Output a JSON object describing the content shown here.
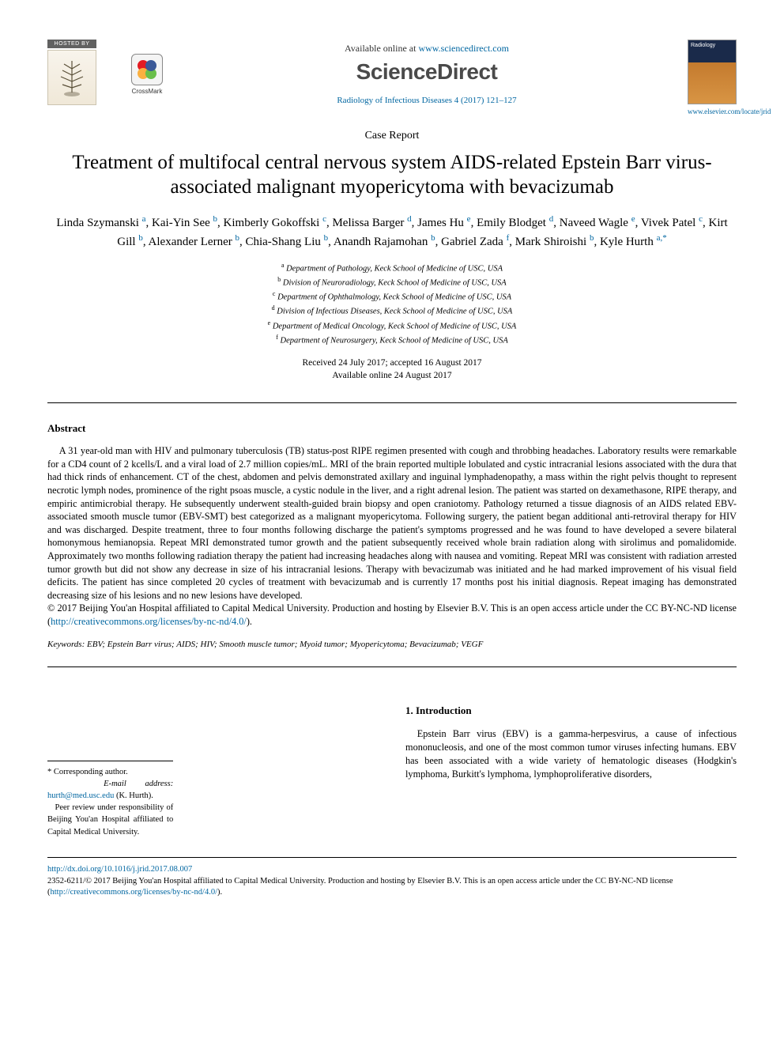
{
  "header": {
    "hosted_by_label": "HOSTED BY",
    "crossmark_label": "CrossMark",
    "available_prefix": "Available online at ",
    "available_url": "www.sciencedirect.com",
    "sd_logo_text": "ScienceDirect",
    "journal_ref": "Radiology of Infectious Diseases 4 (2017) 121–127",
    "cover_title": "Radiology",
    "cover_link": "www.elsevier.com/locate/jrid"
  },
  "article": {
    "type_label": "Case Report",
    "title": "Treatment of multifocal central nervous system AIDS-related Epstein Barr virus-associated malignant myopericytoma with bevacizumab",
    "authors": [
      {
        "name": "Linda Szymanski",
        "aff": "a"
      },
      {
        "name": "Kai-Yin See",
        "aff": "b"
      },
      {
        "name": "Kimberly Gokoffski",
        "aff": "c"
      },
      {
        "name": "Melissa Barger",
        "aff": "d"
      },
      {
        "name": "James Hu",
        "aff": "e"
      },
      {
        "name": "Emily Blodget",
        "aff": "d"
      },
      {
        "name": "Naveed Wagle",
        "aff": "e"
      },
      {
        "name": "Vivek Patel",
        "aff": "c"
      },
      {
        "name": "Kirt Gill",
        "aff": "b"
      },
      {
        "name": "Alexander Lerner",
        "aff": "b"
      },
      {
        "name": "Chia-Shang Liu",
        "aff": "b"
      },
      {
        "name": "Anandh Rajamohan",
        "aff": "b"
      },
      {
        "name": "Gabriel Zada",
        "aff": "f"
      },
      {
        "name": "Mark Shiroishi",
        "aff": "b"
      },
      {
        "name": "Kyle Hurth",
        "aff": "a",
        "corr": true
      }
    ],
    "affiliations": [
      {
        "label": "a",
        "text": "Department of Pathology, Keck School of Medicine of USC, USA"
      },
      {
        "label": "b",
        "text": "Division of Neuroradiology, Keck School of Medicine of USC, USA"
      },
      {
        "label": "c",
        "text": "Department of Ophthalmology, Keck School of Medicine of USC, USA"
      },
      {
        "label": "d",
        "text": "Division of Infectious Diseases, Keck School of Medicine of USC, USA"
      },
      {
        "label": "e",
        "text": "Department of Medical Oncology, Keck School of Medicine of USC, USA"
      },
      {
        "label": "f",
        "text": "Department of Neurosurgery, Keck School of Medicine of USC, USA"
      }
    ],
    "dates": {
      "received_accepted": "Received 24 July 2017; accepted 16 August 2017",
      "online": "Available online 24 August 2017"
    }
  },
  "abstract": {
    "heading": "Abstract",
    "body": "A 31 year-old man with HIV and pulmonary tuberculosis (TB) status-post RIPE regimen presented with cough and throbbing headaches. Laboratory results were remarkable for a CD4 count of 2 kcells/L and a viral load of 2.7 million copies/mL. MRI of the brain reported multiple lobulated and cystic intracranial lesions associated with the dura that had thick rinds of enhancement. CT of the chest, abdomen and pelvis demonstrated axillary and inguinal lymphadenopathy, a mass within the right pelvis thought to represent necrotic lymph nodes, prominence of the right psoas muscle, a cystic nodule in the liver, and a right adrenal lesion. The patient was started on dexamethasone, RIPE therapy, and empiric antimicrobial therapy. He subsequently underwent stealth-guided brain biopsy and open craniotomy. Pathology returned a tissue diagnosis of an AIDS related EBV-associated smooth muscle tumor (EBV-SMT) best categorized as a malignant myopericytoma. Following surgery, the patient began additional anti-retroviral therapy for HIV and was discharged. Despite treatment, three to four months following discharge the patient's symptoms progressed and he was found to have developed a severe bilateral homonymous hemianopsia. Repeat MRI demonstrated tumor growth and the patient subsequently received whole brain radiation along with sirolimus and pomalidomide. Approximately two months following radiation therapy the patient had increasing headaches along with nausea and vomiting. Repeat MRI was consistent with radiation arrested tumor growth but did not show any decrease in size of his intracranial lesions. Therapy with bevacizumab was initiated and he had marked improvement of his visual field deficits. The patient has since completed 20 cycles of treatment with bevacizumab and is currently 17 months post his initial diagnosis. Repeat imaging has demonstrated decreasing size of his lesions and no new lesions have developed.",
    "copyright": "© 2017 Beijing You'an Hospital affiliated to Capital Medical University. Production and hosting by Elsevier B.V. This is an open access article under the CC BY-NC-ND license (",
    "license_url": "http://creativecommons.org/licenses/by-nc-nd/4.0/",
    "copyright_suffix": ")."
  },
  "keywords": {
    "label": "Keywords:",
    "text": " EBV; Epstein Barr virus; AIDS; HIV; Smooth muscle tumor; Myoid tumor; Myopericytoma; Bevacizumab; VEGF"
  },
  "corresponding": {
    "star_label": "* Corresponding author.",
    "email_label": "E-mail address: ",
    "email": "hurth@med.usc.edu",
    "email_suffix": " (K. Hurth).",
    "peer_review": "Peer review under responsibility of Beijing You'an Hospital affiliated to Capital Medical University."
  },
  "introduction": {
    "heading": "1. Introduction",
    "body": "Epstein Barr virus (EBV) is a gamma-herpesvirus, a cause of infectious mononucleosis, and one of the most common tumor viruses infecting humans. EBV has been associated with a wide variety of hematologic diseases (Hodgkin's lymphoma, Burkitt's lymphoma, lymphoproliferative disorders,"
  },
  "footer": {
    "doi": "http://dx.doi.org/10.1016/j.jrid.2017.08.007",
    "issn_line": "2352-6211/© 2017 Beijing You'an Hospital affiliated to Capital Medical University. Production and hosting by Elsevier B.V. This is an open access article under the CC BY-NC-ND license (",
    "license_url": "http://creativecommons.org/licenses/by-nc-nd/4.0/",
    "suffix": ")."
  },
  "colors": {
    "link": "#0066a1",
    "text": "#000000",
    "hosted_bg": "#616161"
  }
}
